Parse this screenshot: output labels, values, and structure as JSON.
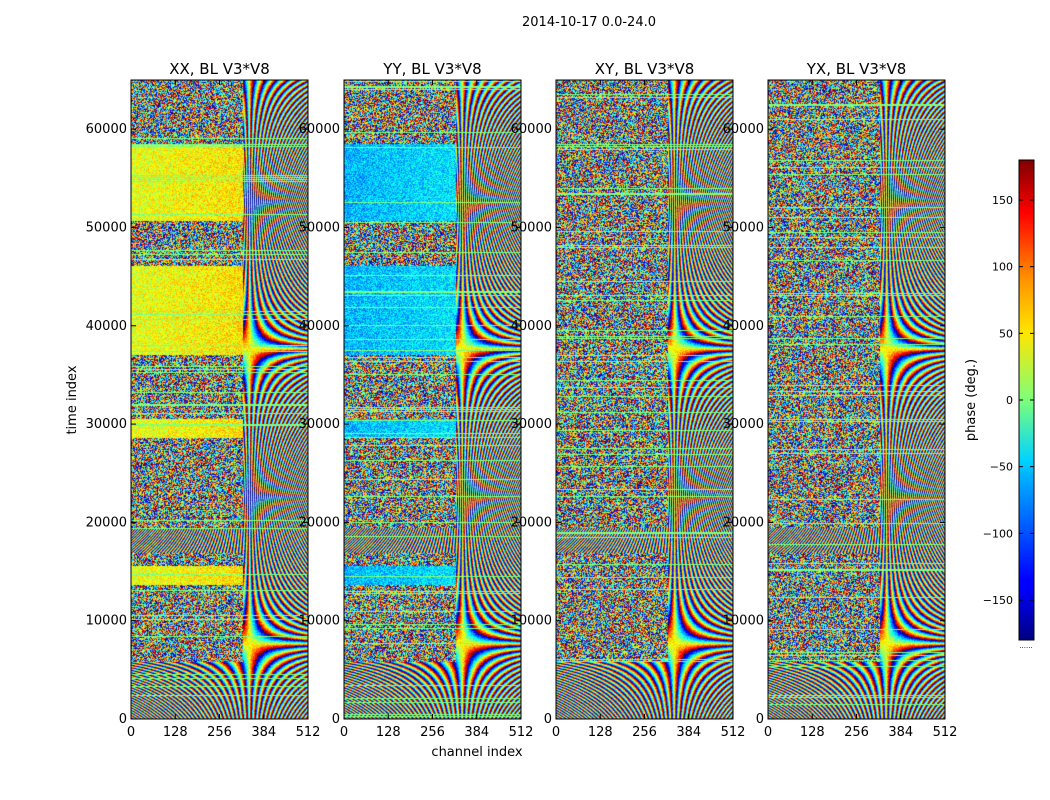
{
  "chart_data": {
    "type": "heatmap",
    "suptitle": "2014-10-17 0.0-24.0",
    "panels": [
      {
        "title": "XX, BL V3*V8"
      },
      {
        "title": "YY, BL V3*V8"
      },
      {
        "title": "XY, BL V3*V8"
      },
      {
        "title": "YX, BL V3*V8"
      }
    ],
    "xlabel": "channel index",
    "ylabel": "time index",
    "xlim": [
      0,
      512
    ],
    "ylim": [
      0,
      65000
    ],
    "xticks": [
      "0",
      "128",
      "256",
      "384",
      "512"
    ],
    "yticks": [
      "0",
      "10000",
      "20000",
      "30000",
      "40000",
      "50000",
      "60000"
    ],
    "colorbar": {
      "label": "phase (deg.)",
      "range": [
        -180,
        180
      ],
      "ticks": [
        "−150",
        "−100",
        "−50",
        "0",
        "50",
        "100",
        "150"
      ],
      "colormap": "jet",
      "extra_label": "......"
    }
  }
}
